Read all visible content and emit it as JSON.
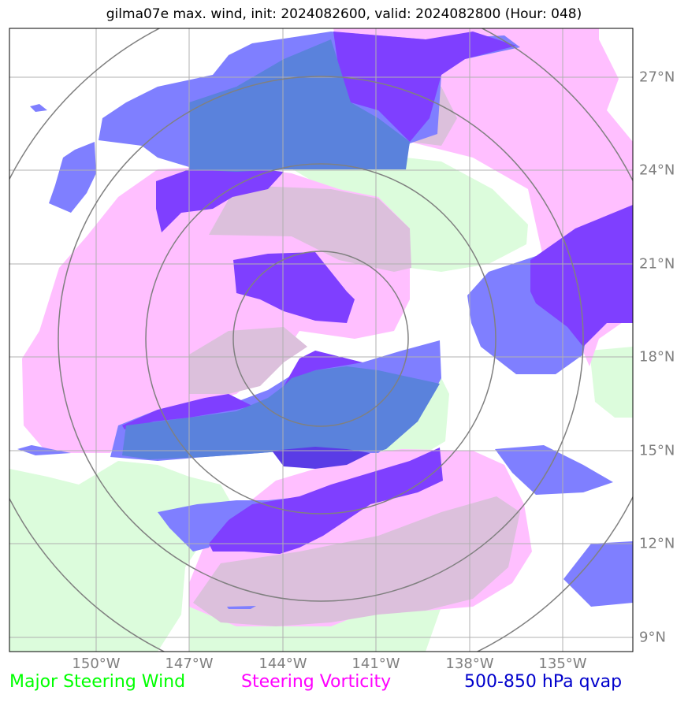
{
  "title": "gilma07e max. wind, init: 2024082600, valid: 2024082800 (Hour: 048)",
  "axes": {
    "lon_labels": [
      "150°W",
      "147°W",
      "144°W",
      "141°W",
      "138°W",
      "135°W"
    ],
    "lat_labels": [
      "27°N",
      "24°N",
      "21°N",
      "18°N",
      "15°N",
      "12°N",
      "9°N"
    ]
  },
  "legend": {
    "wind": {
      "label": "Major Steering Wind",
      "color": "#00ff00"
    },
    "vorticity": {
      "label": "Steering Vorticity",
      "color": "#ff00ff"
    },
    "qvap": {
      "label": "500-850 hPa qvap",
      "color": "#0000cc"
    }
  },
  "colors": {
    "wind_fill": "#dcfcdc",
    "vorticity_fill": "#ffbfff",
    "qvap_fill": "#7f7fff",
    "qvap_dark": "#7f3fff",
    "overlap_wind_vorticity": "#dcc0dc",
    "overlap_qvap_wind": "#5a82dc",
    "overlap_qvap_dark": "#5a3ce6",
    "range_rings": "#808080",
    "gridlines": "#b0b0b0"
  }
}
